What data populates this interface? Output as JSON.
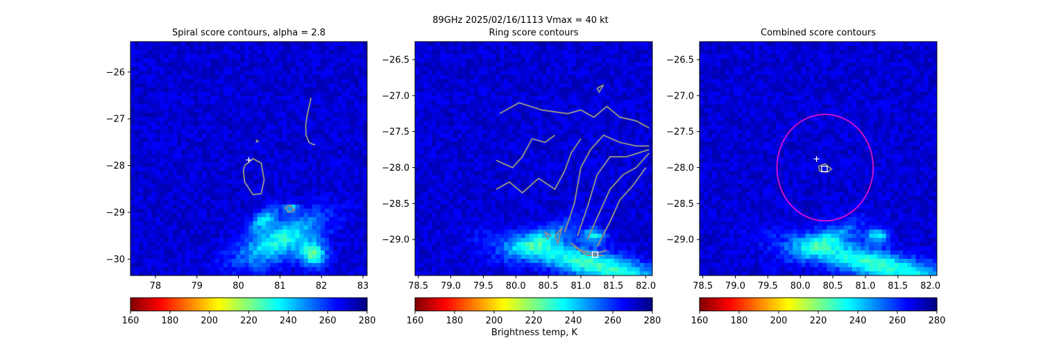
{
  "figure": {
    "suptitle": "89GHz  2025/02/16/1113    Vmax = 40 kt",
    "colorbar_label": "Brightness temp, K"
  },
  "chart_data": [
    {
      "type": "heatmap",
      "title": "Spiral score contours, alpha =  2.8",
      "xlim": [
        77.4,
        83.1
      ],
      "ylim": [
        -30.35,
        -25.35
      ],
      "xticks": [
        78,
        79,
        80,
        81,
        82,
        83
      ],
      "yticks": [
        -26,
        -27,
        -28,
        -29,
        -30
      ],
      "colormap": "jet_r",
      "clim": [
        160,
        280
      ],
      "cbar_ticks": [
        160,
        180,
        200,
        220,
        240,
        260,
        280
      ],
      "background_tb": 270,
      "warm_features": [
        {
          "x": 81.0,
          "y": -29.6,
          "sx": 0.75,
          "sy": 0.28,
          "angle": 22,
          "tb": 232
        },
        {
          "x": 80.6,
          "y": -29.15,
          "sx": 0.25,
          "sy": 0.12,
          "angle": 30,
          "tb": 240
        },
        {
          "x": 81.3,
          "y": -28.9,
          "sx": 0.12,
          "sy": 0.06,
          "angle": 0,
          "tb": 240
        },
        {
          "x": 81.8,
          "y": -29.9,
          "sx": 0.22,
          "sy": 0.18,
          "angle": 0,
          "tb": 226
        }
      ],
      "contours": [
        [
          [
            80.15,
            -28.0
          ],
          [
            80.35,
            -27.85
          ],
          [
            80.55,
            -27.95
          ],
          [
            80.62,
            -28.3
          ],
          [
            80.55,
            -28.6
          ],
          [
            80.35,
            -28.62
          ],
          [
            80.15,
            -28.35
          ],
          [
            80.12,
            -28.1
          ],
          [
            80.15,
            -28.0
          ]
        ],
        [
          [
            81.75,
            -26.55
          ],
          [
            81.7,
            -26.75
          ],
          [
            81.65,
            -26.95
          ],
          [
            81.62,
            -27.15
          ],
          [
            81.63,
            -27.35
          ],
          [
            81.7,
            -27.5
          ],
          [
            81.8,
            -27.55
          ],
          [
            81.85,
            -27.55
          ]
        ],
        [
          [
            80.42,
            -27.45
          ],
          [
            80.47,
            -27.48
          ],
          [
            80.42,
            -27.5
          ]
        ],
        [
          [
            81.12,
            -28.9
          ],
          [
            81.25,
            -28.85
          ],
          [
            81.35,
            -28.95
          ],
          [
            81.22,
            -29.0
          ],
          [
            81.12,
            -28.9
          ]
        ]
      ],
      "markers": [
        {
          "symbol": "plus",
          "x": 80.25,
          "y": -27.88
        }
      ]
    },
    {
      "type": "heatmap",
      "title": "Ring score contours",
      "xlim": [
        78.45,
        82.1
      ],
      "ylim": [
        -29.5,
        -26.25
      ],
      "xticks": [
        78.5,
        79.0,
        79.5,
        80.0,
        80.5,
        81.0,
        81.5,
        82.0
      ],
      "yticks": [
        -26.5,
        -27.0,
        -27.5,
        -28.0,
        -28.5,
        -29.0
      ],
      "colormap": "jet_r",
      "clim": [
        160,
        280
      ],
      "background_tb": 270,
      "warm_features": [
        {
          "x": 81.2,
          "y": -29.35,
          "sx": 0.9,
          "sy": 0.14,
          "angle": -12,
          "tb": 228
        },
        {
          "x": 80.4,
          "y": -29.0,
          "sx": 0.4,
          "sy": 0.12,
          "angle": 20,
          "tb": 245
        },
        {
          "x": 81.2,
          "y": -28.95,
          "sx": 0.12,
          "sy": 0.07,
          "angle": 0,
          "tb": 235
        }
      ],
      "contours": [
        [
          [
            79.75,
            -27.25
          ],
          [
            80.05,
            -27.1
          ],
          [
            80.4,
            -27.2
          ],
          [
            80.8,
            -27.25
          ],
          [
            81.0,
            -27.2
          ],
          [
            81.2,
            -27.3
          ],
          [
            81.4,
            -27.15
          ],
          [
            81.6,
            -27.3
          ],
          [
            81.85,
            -27.35
          ],
          [
            82.05,
            -27.45
          ]
        ],
        [
          [
            79.7,
            -27.9
          ],
          [
            79.95,
            -28.0
          ],
          [
            80.1,
            -27.85
          ],
          [
            80.25,
            -27.6
          ],
          [
            80.45,
            -27.65
          ],
          [
            80.6,
            -27.55
          ]
        ],
        [
          [
            79.7,
            -28.3
          ],
          [
            79.9,
            -28.2
          ],
          [
            80.1,
            -28.35
          ],
          [
            80.35,
            -28.15
          ],
          [
            80.6,
            -28.3
          ],
          [
            80.75,
            -28.05
          ],
          [
            80.85,
            -27.8
          ],
          [
            81.0,
            -27.6
          ]
        ],
        [
          [
            80.75,
            -28.9
          ],
          [
            80.9,
            -28.5
          ],
          [
            81.0,
            -28.0
          ],
          [
            81.15,
            -27.75
          ],
          [
            81.35,
            -27.55
          ],
          [
            81.6,
            -27.65
          ],
          [
            81.85,
            -27.7
          ],
          [
            82.05,
            -27.7
          ]
        ],
        [
          [
            80.95,
            -28.95
          ],
          [
            81.1,
            -28.55
          ],
          [
            81.25,
            -28.1
          ],
          [
            81.45,
            -27.85
          ],
          [
            81.7,
            -27.85
          ],
          [
            82.05,
            -27.75
          ]
        ],
        [
          [
            81.1,
            -29.0
          ],
          [
            81.3,
            -28.6
          ],
          [
            81.45,
            -28.3
          ],
          [
            81.65,
            -28.1
          ],
          [
            81.85,
            -28.0
          ],
          [
            82.05,
            -27.8
          ]
        ],
        [
          [
            81.25,
            -29.1
          ],
          [
            81.45,
            -28.75
          ],
          [
            81.6,
            -28.45
          ],
          [
            81.8,
            -28.25
          ],
          [
            82.0,
            -28.0
          ]
        ],
        [
          [
            80.85,
            -29.05
          ],
          [
            81.0,
            -29.15
          ],
          [
            81.2,
            -29.2
          ],
          [
            81.4,
            -29.15
          ]
        ],
        [
          [
            80.9,
            -29.1
          ],
          [
            81.1,
            -29.22
          ],
          [
            81.35,
            -29.22
          ]
        ],
        [
          [
            80.6,
            -28.95
          ],
          [
            80.7,
            -28.85
          ],
          [
            80.65,
            -29.05
          ],
          [
            80.6,
            -28.95
          ]
        ],
        [
          [
            81.25,
            -26.9
          ],
          [
            81.35,
            -26.85
          ],
          [
            81.28,
            -26.95
          ],
          [
            81.25,
            -26.9
          ]
        ],
        [
          [
            80.5,
            -29.0
          ],
          [
            80.45,
            -28.9
          ],
          [
            80.55,
            -28.95
          ]
        ]
      ],
      "markers": [
        {
          "symbol": "square",
          "x": 81.22,
          "y": -29.21
        }
      ]
    },
    {
      "type": "heatmap",
      "title": "Combined score contours",
      "xlim": [
        78.45,
        82.1
      ],
      "ylim": [
        -29.5,
        -26.25
      ],
      "xticks": [
        78.5,
        79.0,
        79.5,
        80.0,
        80.5,
        81.0,
        81.5,
        82.0
      ],
      "yticks": [
        -26.5,
        -27.0,
        -27.5,
        -28.0,
        -28.5,
        -29.0
      ],
      "colormap": "jet_r",
      "clim": [
        160,
        280
      ],
      "cbar_ticks": [
        160,
        180,
        200,
        220,
        240,
        260,
        280
      ],
      "background_tb": 270,
      "warm_features": [
        {
          "x": 81.2,
          "y": -29.35,
          "sx": 0.9,
          "sy": 0.14,
          "angle": -12,
          "tb": 228
        },
        {
          "x": 80.4,
          "y": -29.0,
          "sx": 0.4,
          "sy": 0.12,
          "angle": 20,
          "tb": 245
        },
        {
          "x": 81.2,
          "y": -28.95,
          "sx": 0.12,
          "sy": 0.07,
          "angle": 0,
          "tb": 235
        }
      ],
      "contours": [
        [
          [
            80.28,
            -27.98
          ],
          [
            80.38,
            -27.95
          ],
          [
            80.48,
            -28.02
          ],
          [
            80.42,
            -28.06
          ],
          [
            80.3,
            -28.05
          ],
          [
            80.28,
            -27.98
          ]
        ]
      ],
      "circle": {
        "cx": 80.38,
        "cy": -28.0,
        "r": 0.74,
        "color": "#cc11cc"
      },
      "markers": [
        {
          "symbol": "plus",
          "x": 80.25,
          "y": -27.88
        },
        {
          "symbol": "square",
          "x": 80.37,
          "y": -28.02
        }
      ]
    }
  ]
}
